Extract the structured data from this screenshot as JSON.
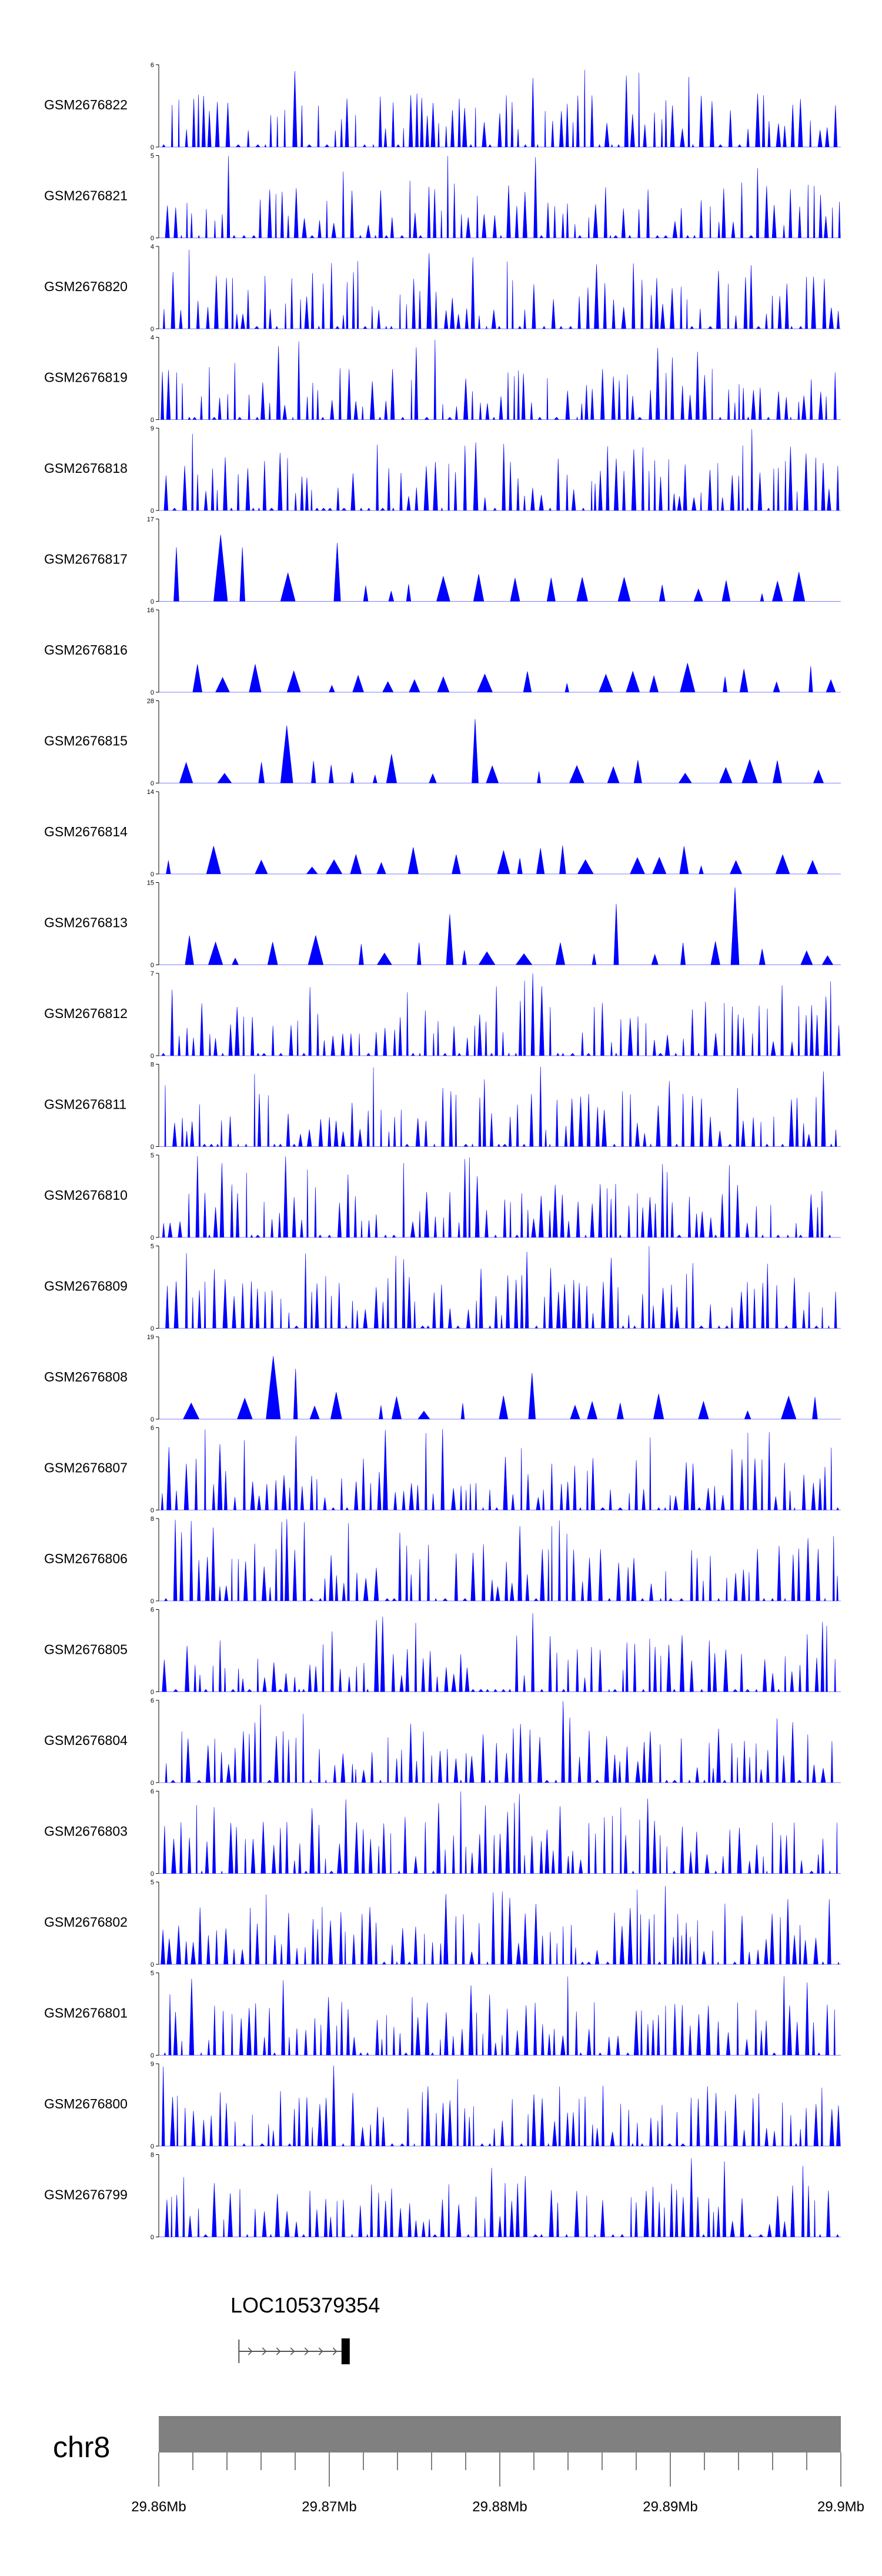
{
  "chart_data": {
    "type": "area",
    "title": "",
    "xlabel": "",
    "ylabel": "",
    "series_color": "#0000ff",
    "region": {
      "chromosome": "chr8",
      "start_mb": 29.86,
      "end_mb": 29.9
    },
    "tracks": [
      {
        "name": "GSM2676822",
        "ymin": 0,
        "ymax": 6
      },
      {
        "name": "GSM2676821",
        "ymin": 0,
        "ymax": 5
      },
      {
        "name": "GSM2676820",
        "ymin": 0,
        "ymax": 4
      },
      {
        "name": "GSM2676819",
        "ymin": 0,
        "ymax": 4
      },
      {
        "name": "GSM2676818",
        "ymin": 0,
        "ymax": 9
      },
      {
        "name": "GSM2676817",
        "ymin": 0,
        "ymax": 17
      },
      {
        "name": "GSM2676816",
        "ymin": 0,
        "ymax": 16
      },
      {
        "name": "GSM2676815",
        "ymin": 0,
        "ymax": 28
      },
      {
        "name": "GSM2676814",
        "ymin": 0,
        "ymax": 14
      },
      {
        "name": "GSM2676813",
        "ymin": 0,
        "ymax": 15
      },
      {
        "name": "GSM2676812",
        "ymin": 0,
        "ymax": 7
      },
      {
        "name": "GSM2676811",
        "ymin": 0,
        "ymax": 8
      },
      {
        "name": "GSM2676810",
        "ymin": 0,
        "ymax": 5
      },
      {
        "name": "GSM2676809",
        "ymin": 0,
        "ymax": 5
      },
      {
        "name": "GSM2676808",
        "ymin": 0,
        "ymax": 19
      },
      {
        "name": "GSM2676807",
        "ymin": 0,
        "ymax": 6
      },
      {
        "name": "GSM2676806",
        "ymin": 0,
        "ymax": 8
      },
      {
        "name": "GSM2676805",
        "ymin": 0,
        "ymax": 6
      },
      {
        "name": "GSM2676804",
        "ymin": 0,
        "ymax": 6
      },
      {
        "name": "GSM2676803",
        "ymin": 0,
        "ymax": 6
      },
      {
        "name": "GSM2676802",
        "ymin": 0,
        "ymax": 5
      },
      {
        "name": "GSM2676801",
        "ymin": 0,
        "ymax": 5
      },
      {
        "name": "GSM2676800",
        "ymin": 0,
        "ymax": 9
      },
      {
        "name": "GSM2676799",
        "ymin": 0,
        "ymax": 8
      }
    ],
    "gene": {
      "name": "LOC105379354",
      "start_mb": 29.8647,
      "end_mb": 29.8712,
      "strand": "+"
    },
    "axis_ticks": [
      {
        "value": 29.86,
        "label": "29.86Mb"
      },
      {
        "value": 29.87,
        "label": "29.87Mb"
      },
      {
        "value": 29.88,
        "label": "29.88Mb"
      },
      {
        "value": 29.89,
        "label": "29.89Mb"
      },
      {
        "value": 29.9,
        "label": "29.9Mb"
      }
    ],
    "minor_tick_step_mb": 0.002
  }
}
